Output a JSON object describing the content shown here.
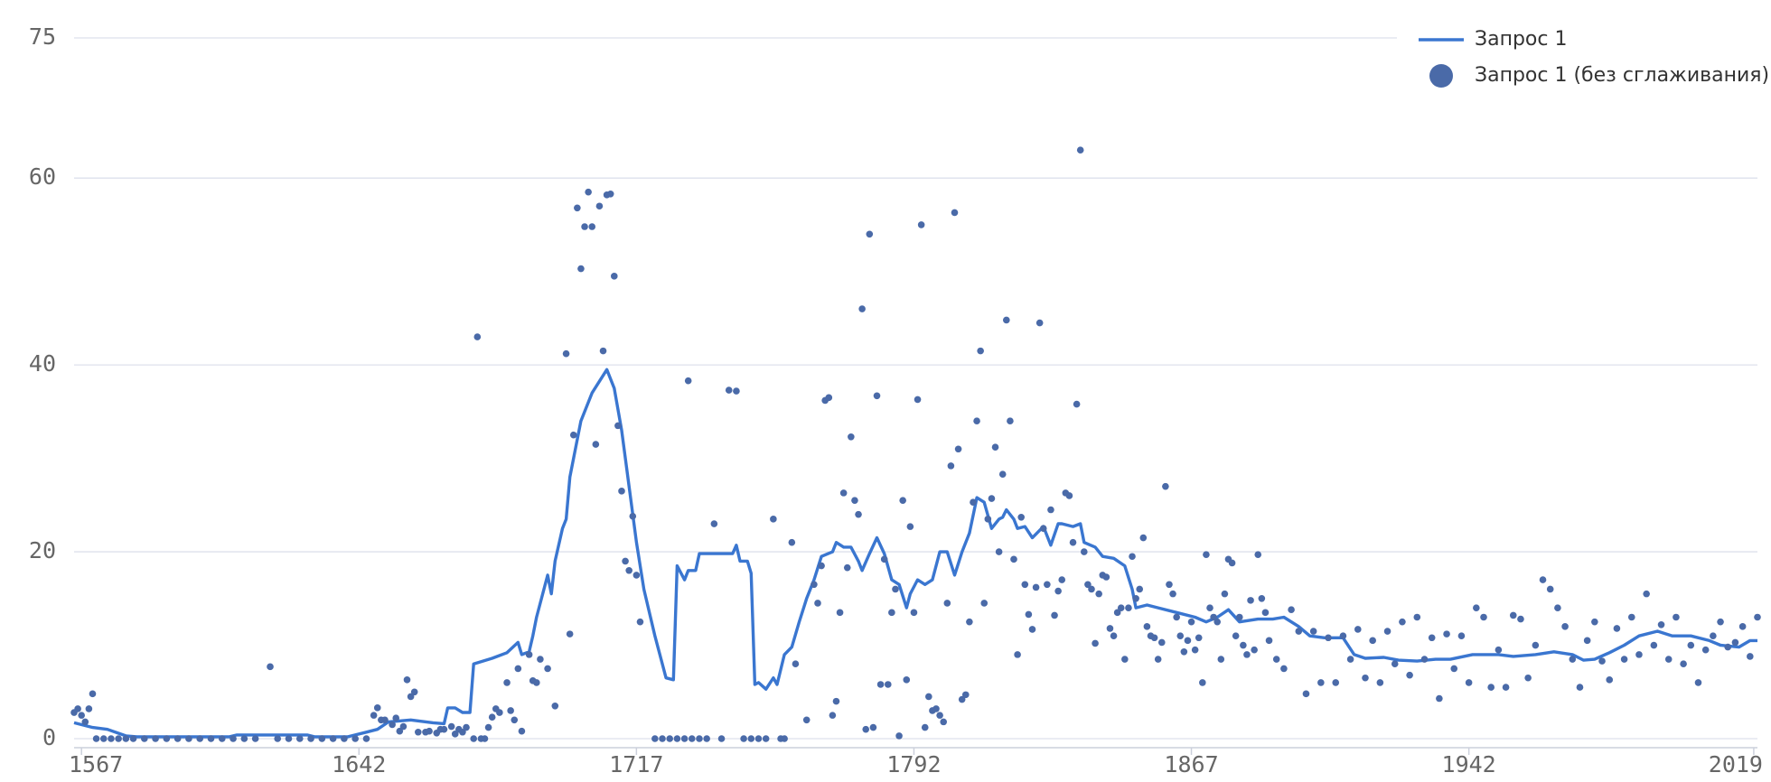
{
  "chart_data": {
    "type": "line",
    "xlim": [
      1565,
      2020
    ],
    "xticks": [
      1567,
      1642,
      1717,
      1792,
      1867,
      1942,
      2019
    ],
    "ylim": [
      0,
      75
    ],
    "yticks": [
      0,
      20,
      40,
      60,
      75
    ],
    "grid": true,
    "legend": "top-right",
    "series": [
      {
        "name": "Запрос 1",
        "type": "line",
        "color": "#3a76d0",
        "x": [
          1565,
          1570,
          1574,
          1579,
          1582,
          1607,
          1609,
          1628,
          1630,
          1639,
          1644,
          1647,
          1650,
          1656,
          1662,
          1665,
          1666,
          1668,
          1670,
          1672,
          1673,
          1678,
          1682,
          1685,
          1686,
          1688,
          1689,
          1690,
          1693,
          1694,
          1695,
          1697,
          1698,
          1699,
          1702,
          1705,
          1709,
          1711,
          1713,
          1715,
          1717,
          1719,
          1722,
          1723,
          1725,
          1727,
          1728,
          1730,
          1731,
          1733,
          1734,
          1743,
          1744,
          1745,
          1747,
          1748,
          1749,
          1750,
          1752,
          1754,
          1755,
          1757,
          1759,
          1761,
          1763,
          1765,
          1767,
          1770,
          1771,
          1773,
          1775,
          1777,
          1778,
          1780,
          1782,
          1784,
          1786,
          1788,
          1790,
          1791,
          1793,
          1795,
          1797,
          1799,
          1801,
          1803,
          1805,
          1807,
          1809,
          1811,
          1813,
          1815,
          1816,
          1817,
          1819,
          1820,
          1822,
          1824,
          1827,
          1829,
          1831,
          1832,
          1835,
          1837,
          1838,
          1841,
          1843,
          1846,
          1849,
          1851,
          1852,
          1855,
          1858,
          1863,
          1868,
          1871,
          1874,
          1877,
          1880,
          1885,
          1889,
          1892,
          1896,
          1899,
          1903,
          1908,
          1911,
          1914,
          1919,
          1923,
          1928,
          1933,
          1937,
          1943,
          1950,
          1954,
          1960,
          1965,
          1970,
          1973,
          1976,
          1980,
          1984,
          1988,
          1993,
          1997,
          2002,
          2007,
          2010,
          2015,
          2018,
          2020
        ],
        "values": [
          1.7,
          1.2,
          1.0,
          0.3,
          0.2,
          0.2,
          0.4,
          0.4,
          0.2,
          0.2,
          0.7,
          1.0,
          1.8,
          2.0,
          1.7,
          1.6,
          3.3,
          3.3,
          2.8,
          2.8,
          8.0,
          8.6,
          9.2,
          10.3,
          9.0,
          9.3,
          11.0,
          13.0,
          17.5,
          15.5,
          19.0,
          22.5,
          23.5,
          28.0,
          34.0,
          37.0,
          39.5,
          37.5,
          33.0,
          27.0,
          21.0,
          16.0,
          11.0,
          9.5,
          6.5,
          6.3,
          18.5,
          17.0,
          18.0,
          18.0,
          19.8,
          19.8,
          20.7,
          19.0,
          19.0,
          17.7,
          5.8,
          6.0,
          5.3,
          6.5,
          5.8,
          9.0,
          9.8,
          12.5,
          15.0,
          17.0,
          19.5,
          20.0,
          21.0,
          20.5,
          20.5,
          19.0,
          18.0,
          19.8,
          21.5,
          19.8,
          17.0,
          16.5,
          14.0,
          15.5,
          17.0,
          16.5,
          17.0,
          20.0,
          20.0,
          17.5,
          20.0,
          22.0,
          25.8,
          25.3,
          22.5,
          23.5,
          23.7,
          24.5,
          23.5,
          22.5,
          22.7,
          21.5,
          22.7,
          20.7,
          23.0,
          23.0,
          22.7,
          23.0,
          21.0,
          20.5,
          19.5,
          19.3,
          18.5,
          16.0,
          14.0,
          14.3,
          14.0,
          13.5,
          13.0,
          12.5,
          13.0,
          13.8,
          12.5,
          12.8,
          12.8,
          13.0,
          12.0,
          11.0,
          10.8,
          10.8,
          9.0,
          8.6,
          8.7,
          8.4,
          8.3,
          8.5,
          8.5,
          9.0,
          9.0,
          8.8,
          9.0,
          9.3,
          9.0,
          8.4,
          8.5,
          9.2,
          10.0,
          11.0,
          11.5,
          11.0,
          11.0,
          10.5,
          10.0,
          9.8,
          10.5,
          10.5
        ]
      },
      {
        "name": "Запрос 1 (без сглаживания)",
        "type": "scatter",
        "color": "#4a6aa8",
        "x": [
          1565,
          1566,
          1567,
          1568,
          1569,
          1570,
          1571,
          1573,
          1575,
          1577,
          1579,
          1581,
          1584,
          1587,
          1590,
          1593,
          1596,
          1599,
          1602,
          1605,
          1608,
          1611,
          1614,
          1618,
          1620,
          1623,
          1626,
          1629,
          1632,
          1635,
          1638,
          1641,
          1644,
          1646,
          1647,
          1648,
          1649,
          1651,
          1652,
          1653,
          1654,
          1655,
          1656,
          1657,
          1658,
          1660,
          1661,
          1663,
          1664,
          1665,
          1667,
          1668,
          1669,
          1670,
          1671,
          1673,
          1674,
          1675,
          1676,
          1677,
          1678,
          1679,
          1680,
          1682,
          1683,
          1684,
          1685,
          1686,
          1688,
          1689,
          1690,
          1691,
          1693,
          1695,
          1698,
          1699,
          1700,
          1701,
          1702,
          1703,
          1704,
          1705,
          1706,
          1707,
          1708,
          1709,
          1710,
          1711,
          1712,
          1713,
          1714,
          1715,
          1716,
          1717,
          1718,
          1722,
          1724,
          1726,
          1728,
          1730,
          1731,
          1732,
          1734,
          1736,
          1738,
          1740,
          1742,
          1744,
          1746,
          1748,
          1750,
          1752,
          1754,
          1756,
          1757,
          1759,
          1760,
          1763,
          1765,
          1766,
          1767,
          1768,
          1769,
          1770,
          1771,
          1772,
          1773,
          1774,
          1775,
          1776,
          1777,
          1778,
          1779,
          1780,
          1781,
          1782,
          1783,
          1784,
          1785,
          1786,
          1787,
          1788,
          1789,
          1790,
          1791,
          1792,
          1793,
          1794,
          1795,
          1796,
          1797,
          1798,
          1799,
          1800,
          1801,
          1802,
          1803,
          1804,
          1805,
          1806,
          1807,
          1808,
          1809,
          1810,
          1811,
          1812,
          1813,
          1814,
          1815,
          1816,
          1817,
          1818,
          1819,
          1820,
          1821,
          1822,
          1823,
          1824,
          1825,
          1826,
          1827,
          1828,
          1829,
          1830,
          1831,
          1832,
          1833,
          1834,
          1835,
          1836,
          1837,
          1838,
          1839,
          1840,
          1841,
          1842,
          1843,
          1844,
          1845,
          1846,
          1847,
          1848,
          1849,
          1850,
          1851,
          1852,
          1853,
          1854,
          1855,
          1856,
          1857,
          1858,
          1859,
          1860,
          1861,
          1862,
          1863,
          1864,
          1865,
          1866,
          1867,
          1868,
          1869,
          1870,
          1871,
          1872,
          1873,
          1874,
          1875,
          1876,
          1877,
          1878,
          1879,
          1880,
          1881,
          1882,
          1883,
          1884,
          1885,
          1886,
          1887,
          1888,
          1890,
          1892,
          1894,
          1896,
          1898,
          1900,
          1902,
          1904,
          1906,
          1908,
          1910,
          1912,
          1914,
          1916,
          1918,
          1920,
          1922,
          1924,
          1926,
          1928,
          1930,
          1932,
          1934,
          1936,
          1938,
          1940,
          1942,
          1944,
          1946,
          1948,
          1950,
          1952,
          1954,
          1956,
          1958,
          1960,
          1962,
          1964,
          1966,
          1968,
          1970,
          1972,
          1974,
          1976,
          1978,
          1980,
          1982,
          1984,
          1986,
          1988,
          1990,
          1992,
          1994,
          1996,
          1998,
          2000,
          2002,
          2004,
          2006,
          2008,
          2010,
          2012,
          2014,
          2016,
          2018,
          2020
        ],
        "values": [
          2.8,
          3.2,
          2.5,
          1.8,
          3.2,
          4.8,
          0,
          0,
          0,
          0,
          0,
          0,
          0,
          0,
          0,
          0,
          0,
          0,
          0,
          0,
          0,
          0,
          0,
          7.7,
          0,
          0,
          0,
          0,
          0,
          0,
          0,
          0,
          0,
          2.5,
          3.3,
          2.0,
          2.0,
          1.5,
          2.2,
          0.8,
          1.3,
          6.3,
          4.5,
          5.0,
          0.7,
          0.7,
          0.8,
          0.6,
          1.0,
          1.0,
          1.3,
          0.5,
          1.0,
          0.7,
          1.2,
          0,
          43.0,
          0,
          0,
          1.2,
          2.3,
          3.2,
          2.8,
          6.0,
          3.0,
          2.0,
          7.5,
          0.8,
          9.0,
          6.2,
          6.0,
          8.5,
          7.5,
          3.5,
          41.2,
          11.2,
          32.5,
          56.8,
          50.3,
          54.8,
          58.5,
          54.8,
          31.5,
          57.0,
          41.5,
          58.2,
          58.3,
          49.5,
          33.5,
          26.5,
          19.0,
          18.0,
          23.8,
          17.5,
          12.5,
          0,
          0,
          0,
          0,
          0,
          38.3,
          0,
          0,
          0,
          23.0,
          0,
          37.3,
          37.2,
          0,
          0,
          0,
          0,
          23.5,
          0,
          0,
          21.0,
          8.0,
          2.0,
          16.5,
          14.5,
          18.5,
          36.2,
          36.5,
          2.5,
          4.0,
          13.5,
          26.3,
          18.3,
          32.3,
          25.5,
          24.0,
          46.0,
          1.0,
          54.0,
          1.2,
          36.7,
          5.8,
          19.2,
          5.8,
          13.5,
          16.0,
          0.3,
          25.5,
          6.3,
          22.7,
          13.5,
          36.3,
          55.0,
          1.2,
          4.5,
          3.0,
          3.2,
          2.5,
          1.8,
          14.5,
          29.2,
          56.3,
          31.0,
          4.2,
          4.7,
          12.5,
          25.3,
          34.0,
          41.5,
          14.5,
          23.5,
          25.7,
          31.2,
          20.0,
          28.3,
          44.8,
          34.0,
          19.2,
          9.0,
          23.7,
          16.5,
          13.3,
          11.7,
          16.2,
          44.5,
          22.5,
          16.5,
          24.5,
          13.2,
          15.8,
          17.0,
          26.3,
          26.0,
          21.0,
          35.8,
          63.0,
          20.0,
          16.5,
          16.0,
          10.2,
          15.5,
          17.5,
          17.3,
          11.8,
          11.0,
          13.5,
          14.0,
          8.5,
          14.0,
          19.5,
          15.0,
          16.0,
          21.5,
          12.0,
          11.0,
          10.8,
          8.5,
          10.3,
          27.0,
          16.5,
          15.5,
          13.0,
          11.0,
          9.3,
          10.5,
          12.5,
          9.5,
          10.8,
          6.0,
          19.7,
          14.0,
          13.0,
          12.5,
          8.5,
          15.5,
          19.2,
          18.8,
          11.0,
          13.0,
          10.0,
          9.0,
          14.8,
          9.5,
          19.7,
          15.0,
          13.5,
          10.5,
          8.5,
          7.5,
          13.8,
          11.5,
          4.8,
          11.5,
          6.0,
          10.8,
          6.0,
          11.0,
          8.5,
          11.7,
          6.5,
          10.5,
          6.0,
          11.5,
          8.0,
          12.5,
          6.8,
          13.0,
          8.5,
          10.8,
          4.3,
          11.2,
          7.5,
          11.0,
          6.0,
          14.0,
          13.0,
          5.5,
          9.5,
          5.5,
          13.2,
          12.8,
          6.5,
          10.0,
          17.0,
          16.0,
          14.0,
          12.0,
          8.5,
          5.5,
          10.5,
          12.5,
          8.3,
          6.3,
          11.8,
          8.5,
          13.0,
          9.0,
          15.5,
          10.0,
          12.2,
          8.5,
          13.0,
          8.0,
          10.0,
          6.0,
          9.5,
          11.0,
          12.5,
          9.8,
          10.3,
          12.0,
          8.8,
          13.0
        ]
      }
    ]
  }
}
